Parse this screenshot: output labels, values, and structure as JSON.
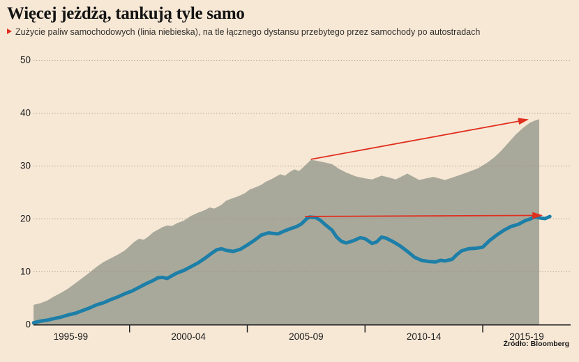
{
  "page": {
    "background_color": "#f7e8d6"
  },
  "header": {
    "title": "Więcej jeżdżą, tankują tyle samo",
    "subtitle": "Zużycie paliw samochodowych (linia niebieska), na tle łącznego dystansu przebytego przez samochody po autostradach"
  },
  "source": {
    "label": "Źródło: Bloomberg"
  },
  "chart_data": {
    "type": "area",
    "title": "Więcej jeżdżą, tankują tyle samo",
    "subtitle": "Zużycie paliw samochodowych (linia niebieska), na tle łącznego dystansu przebytego przez samochody po autostradach",
    "source": "Źródło: Bloomberg",
    "colors": {
      "background": "#f7e8d6",
      "area": "#a9a99b",
      "line": "#1d7fa8",
      "arrow": "#e02f1f",
      "grid": "#97897b",
      "axis": "#1a1a1a",
      "text": "#1a1a1a"
    },
    "x_axis": {
      "range_years": [
        1995,
        2020
      ],
      "tick_years": [
        2000,
        2005,
        2010,
        2015
      ],
      "labels": [
        "1995-99",
        "2000-04",
        "2005-09",
        "2010-14",
        "2015-19"
      ]
    },
    "y_axis": {
      "range": [
        0,
        50
      ],
      "ticks": [
        0,
        10,
        20,
        30,
        40,
        50
      ],
      "grid": "dotted"
    },
    "series": [
      {
        "name": "Łączny dystans przebyty przez samochody po autostradach",
        "type": "area",
        "color": "#a9a99b",
        "points": [
          [
            1995.92,
            3.7
          ],
          [
            1996.2,
            4.0
          ],
          [
            1996.5,
            4.5
          ],
          [
            1996.8,
            5.3
          ],
          [
            1997.1,
            6.0
          ],
          [
            1997.4,
            6.8
          ],
          [
            1997.7,
            7.8
          ],
          [
            1998.0,
            8.8
          ],
          [
            1998.3,
            9.8
          ],
          [
            1998.6,
            10.9
          ],
          [
            1998.9,
            11.8
          ],
          [
            1999.2,
            12.5
          ],
          [
            1999.5,
            13.2
          ],
          [
            1999.8,
            14.0
          ],
          [
            2000.0,
            14.8
          ],
          [
            2000.2,
            15.6
          ],
          [
            2000.4,
            16.2
          ],
          [
            2000.6,
            16.0
          ],
          [
            2000.8,
            16.6
          ],
          [
            2001.0,
            17.4
          ],
          [
            2001.2,
            17.9
          ],
          [
            2001.4,
            18.4
          ],
          [
            2001.6,
            18.7
          ],
          [
            2001.8,
            18.6
          ],
          [
            2002.0,
            19.1
          ],
          [
            2002.3,
            19.6
          ],
          [
            2002.6,
            20.5
          ],
          [
            2002.9,
            21.1
          ],
          [
            2003.2,
            21.6
          ],
          [
            2003.4,
            22.1
          ],
          [
            2003.6,
            21.9
          ],
          [
            2003.9,
            22.6
          ],
          [
            2004.1,
            23.4
          ],
          [
            2004.4,
            23.9
          ],
          [
            2004.6,
            24.2
          ],
          [
            2004.9,
            24.8
          ],
          [
            2005.1,
            25.5
          ],
          [
            2005.4,
            26.0
          ],
          [
            2005.6,
            26.4
          ],
          [
            2005.8,
            27.0
          ],
          [
            2006.0,
            27.4
          ],
          [
            2006.2,
            27.9
          ],
          [
            2006.4,
            28.4
          ],
          [
            2006.6,
            28.1
          ],
          [
            2006.8,
            28.8
          ],
          [
            2007.0,
            29.3
          ],
          [
            2007.2,
            29.0
          ],
          [
            2007.4,
            29.8
          ],
          [
            2007.7,
            31.1
          ],
          [
            2008.0,
            30.9
          ],
          [
            2008.3,
            30.6
          ],
          [
            2008.6,
            30.3
          ],
          [
            2008.9,
            29.4
          ],
          [
            2009.2,
            28.7
          ],
          [
            2009.6,
            28.0
          ],
          [
            2010.0,
            27.6
          ],
          [
            2010.3,
            27.4
          ],
          [
            2010.7,
            28.1
          ],
          [
            2011.0,
            27.8
          ],
          [
            2011.3,
            27.4
          ],
          [
            2011.8,
            28.5
          ],
          [
            2012.3,
            27.3
          ],
          [
            2012.9,
            27.9
          ],
          [
            2013.4,
            27.3
          ],
          [
            2013.8,
            27.9
          ],
          [
            2014.2,
            28.5
          ],
          [
            2014.8,
            29.5
          ],
          [
            2015.2,
            30.6
          ],
          [
            2015.5,
            31.6
          ],
          [
            2015.8,
            32.9
          ],
          [
            2016.1,
            34.4
          ],
          [
            2016.4,
            35.9
          ],
          [
            2016.7,
            37.1
          ],
          [
            2017.0,
            38.1
          ],
          [
            2017.2,
            38.5
          ],
          [
            2017.4,
            38.8
          ]
        ]
      },
      {
        "name": "Zużycie paliw samochodowych",
        "type": "line",
        "color": "#1d7fa8",
        "points": [
          [
            1995.92,
            0.3
          ],
          [
            1996.2,
            0.6
          ],
          [
            1996.5,
            0.8
          ],
          [
            1996.8,
            1.1
          ],
          [
            1997.1,
            1.4
          ],
          [
            1997.4,
            1.8
          ],
          [
            1997.7,
            2.1
          ],
          [
            1998.0,
            2.6
          ],
          [
            1998.3,
            3.1
          ],
          [
            1998.6,
            3.7
          ],
          [
            1998.9,
            4.1
          ],
          [
            1999.2,
            4.7
          ],
          [
            1999.5,
            5.2
          ],
          [
            1999.8,
            5.8
          ],
          [
            2000.1,
            6.3
          ],
          [
            2000.4,
            7.0
          ],
          [
            2000.7,
            7.7
          ],
          [
            2001.0,
            8.3
          ],
          [
            2001.2,
            8.8
          ],
          [
            2001.4,
            8.9
          ],
          [
            2001.6,
            8.7
          ],
          [
            2001.8,
            9.2
          ],
          [
            2002.0,
            9.7
          ],
          [
            2002.3,
            10.2
          ],
          [
            2002.6,
            10.9
          ],
          [
            2002.9,
            11.6
          ],
          [
            2003.2,
            12.5
          ],
          [
            2003.5,
            13.5
          ],
          [
            2003.7,
            14.1
          ],
          [
            2003.9,
            14.3
          ],
          [
            2004.1,
            14.0
          ],
          [
            2004.4,
            13.8
          ],
          [
            2004.7,
            14.2
          ],
          [
            2005.0,
            15.0
          ],
          [
            2005.3,
            15.9
          ],
          [
            2005.6,
            16.9
          ],
          [
            2005.9,
            17.3
          ],
          [
            2006.1,
            17.2
          ],
          [
            2006.3,
            17.1
          ],
          [
            2006.6,
            17.7
          ],
          [
            2006.9,
            18.2
          ],
          [
            2007.1,
            18.5
          ],
          [
            2007.3,
            19.0
          ],
          [
            2007.5,
            19.9
          ],
          [
            2007.65,
            20.3
          ],
          [
            2007.9,
            20.2
          ],
          [
            2008.1,
            19.7
          ],
          [
            2008.3,
            18.9
          ],
          [
            2008.6,
            17.8
          ],
          [
            2008.8,
            16.5
          ],
          [
            2009.0,
            15.7
          ],
          [
            2009.2,
            15.4
          ],
          [
            2009.5,
            15.8
          ],
          [
            2009.8,
            16.4
          ],
          [
            2010.0,
            16.2
          ],
          [
            2010.3,
            15.3
          ],
          [
            2010.5,
            15.6
          ],
          [
            2010.7,
            16.5
          ],
          [
            2010.9,
            16.3
          ],
          [
            2011.2,
            15.6
          ],
          [
            2011.5,
            14.8
          ],
          [
            2011.8,
            13.8
          ],
          [
            2012.1,
            12.7
          ],
          [
            2012.4,
            12.1
          ],
          [
            2012.7,
            11.9
          ],
          [
            2013.0,
            11.8
          ],
          [
            2013.2,
            12.1
          ],
          [
            2013.4,
            12.0
          ],
          [
            2013.7,
            12.3
          ],
          [
            2013.9,
            13.2
          ],
          [
            2014.1,
            13.9
          ],
          [
            2014.4,
            14.3
          ],
          [
            2014.7,
            14.4
          ],
          [
            2015.0,
            14.6
          ],
          [
            2015.3,
            15.9
          ],
          [
            2015.6,
            16.9
          ],
          [
            2015.9,
            17.8
          ],
          [
            2016.2,
            18.5
          ],
          [
            2016.5,
            18.9
          ],
          [
            2016.8,
            19.6
          ],
          [
            2017.0,
            19.9
          ],
          [
            2017.2,
            20.3
          ],
          [
            2017.45,
            20.1
          ],
          [
            2017.65,
            20.0
          ],
          [
            2017.85,
            20.4
          ]
        ]
      }
    ],
    "annotations": {
      "arrows": [
        {
          "name": "distance-trend-arrow",
          "from": [
            2007.7,
            31.2
          ],
          "to": [
            2017.25,
            38.7
          ]
        },
        {
          "name": "fuel-trend-arrow",
          "from": [
            2007.45,
            20.4
          ],
          "to": [
            2017.85,
            20.6
          ]
        }
      ],
      "color": "#e02f1f"
    },
    "legend_position": "none",
    "grid": "horizontal-dotted"
  }
}
